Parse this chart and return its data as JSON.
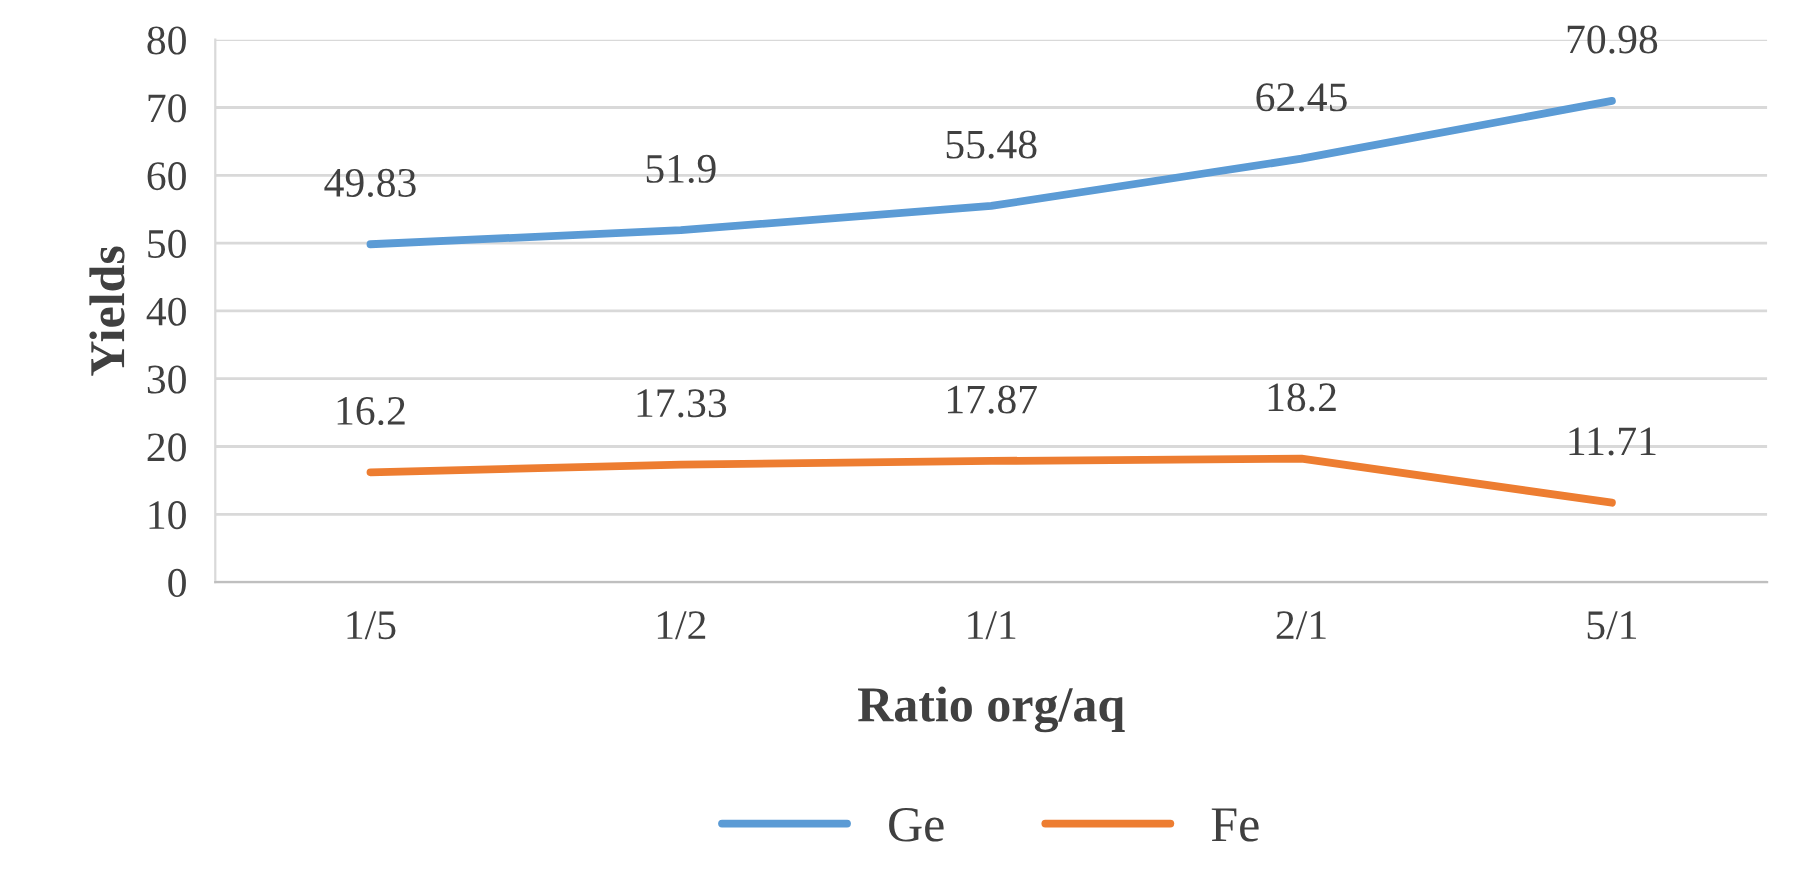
{
  "chart_data": {
    "type": "line",
    "xlabel": "Ratio org/aq",
    "ylabel": "Yields",
    "categories": [
      "1/5",
      "1/2",
      "1/1",
      "2/1",
      "5/1"
    ],
    "series": [
      {
        "name": "Ge",
        "color": "#5b9bd5",
        "values": [
          49.83,
          51.9,
          55.48,
          62.45,
          70.98
        ]
      },
      {
        "name": "Fe",
        "color": "#ed7d31",
        "values": [
          16.2,
          17.33,
          17.87,
          18.2,
          11.71
        ]
      }
    ],
    "ylim": [
      0,
      80
    ],
    "yticks": [
      0,
      10,
      20,
      30,
      40,
      50,
      60,
      70,
      80
    ],
    "grid": "y",
    "legend": "bottom",
    "data_labels": true,
    "marker": "none",
    "line_style": "solid"
  }
}
